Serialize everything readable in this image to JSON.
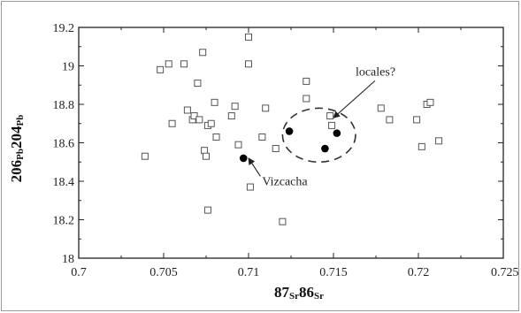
{
  "chart_data": {
    "type": "scatter",
    "xlim": [
      0.7,
      0.725
    ],
    "ylim": [
      18,
      19.2
    ],
    "x_ticks": [
      0.7,
      0.705,
      0.71,
      0.715,
      0.72,
      0.725
    ],
    "x_tick_labels": [
      "0.7",
      "0.705",
      "0.71",
      "0.715",
      "0.72",
      "0.725"
    ],
    "y_ticks": [
      18,
      18.2,
      18.4,
      18.6,
      18.8,
      19,
      19.2
    ],
    "y_tick_labels": [
      "18",
      "18.2",
      "18.4",
      "18.6",
      "18.8",
      "19",
      "19.2"
    ],
    "xlabel": {
      "main1": "87",
      "sub1": "Sr",
      "main2": "86",
      "sub2": "Sr"
    },
    "ylabel": {
      "main1": "206",
      "sub1": "Pb",
      "main2": "204",
      "sub2": "Pb"
    },
    "grid": false,
    "series": [
      {
        "marker": "open-square",
        "points": [
          {
            "x": 0.7039,
            "y": 18.53
          },
          {
            "x": 0.7048,
            "y": 18.98
          },
          {
            "x": 0.7053,
            "y": 19.01
          },
          {
            "x": 0.7055,
            "y": 18.7
          },
          {
            "x": 0.7062,
            "y": 19.01
          },
          {
            "x": 0.7064,
            "y": 18.77
          },
          {
            "x": 0.7067,
            "y": 18.72
          },
          {
            "x": 0.7068,
            "y": 18.74
          },
          {
            "x": 0.707,
            "y": 18.91
          },
          {
            "x": 0.7071,
            "y": 18.72
          },
          {
            "x": 0.7073,
            "y": 19.07
          },
          {
            "x": 0.7074,
            "y": 18.56
          },
          {
            "x": 0.7075,
            "y": 18.53
          },
          {
            "x": 0.7076,
            "y": 18.69
          },
          {
            "x": 0.7076,
            "y": 18.25
          },
          {
            "x": 0.7078,
            "y": 18.7
          },
          {
            "x": 0.708,
            "y": 18.81
          },
          {
            "x": 0.7081,
            "y": 18.63
          },
          {
            "x": 0.709,
            "y": 18.74
          },
          {
            "x": 0.7092,
            "y": 18.79
          },
          {
            "x": 0.7094,
            "y": 18.59
          },
          {
            "x": 0.71,
            "y": 19.15
          },
          {
            "x": 0.71,
            "y": 19.01
          },
          {
            "x": 0.7101,
            "y": 18.37
          },
          {
            "x": 0.7108,
            "y": 18.63
          },
          {
            "x": 0.711,
            "y": 18.78
          },
          {
            "x": 0.7116,
            "y": 18.57
          },
          {
            "x": 0.712,
            "y": 18.19
          },
          {
            "x": 0.7134,
            "y": 18.92
          },
          {
            "x": 0.7134,
            "y": 18.83
          },
          {
            "x": 0.7148,
            "y": 18.74
          },
          {
            "x": 0.7149,
            "y": 18.69
          },
          {
            "x": 0.7178,
            "y": 18.78
          },
          {
            "x": 0.7183,
            "y": 18.72
          },
          {
            "x": 0.7199,
            "y": 18.72
          },
          {
            "x": 0.7202,
            "y": 18.58
          },
          {
            "x": 0.7205,
            "y": 18.8
          },
          {
            "x": 0.7207,
            "y": 18.81
          },
          {
            "x": 0.7212,
            "y": 18.61
          }
        ]
      },
      {
        "marker": "filled-circle",
        "points": [
          {
            "x": 0.7097,
            "y": 18.52
          },
          {
            "x": 0.7124,
            "y": 18.66
          },
          {
            "x": 0.7145,
            "y": 18.57
          },
          {
            "x": 0.7152,
            "y": 18.65
          }
        ]
      }
    ],
    "annotations": [
      {
        "text": "locales?",
        "text_x": 0.7163,
        "text_y": 18.95,
        "arrow_to_x": 0.715,
        "arrow_to_y": 18.73
      },
      {
        "text": "Vizcacha",
        "text_x": 0.7108,
        "text_y": 18.38,
        "arrow_to_x": 0.71,
        "arrow_to_y": 18.52
      }
    ],
    "ellipse": {
      "cx": 0.71415,
      "cy": 18.64,
      "rx": 0.00215,
      "ry": 0.14,
      "style": "dashed"
    }
  }
}
